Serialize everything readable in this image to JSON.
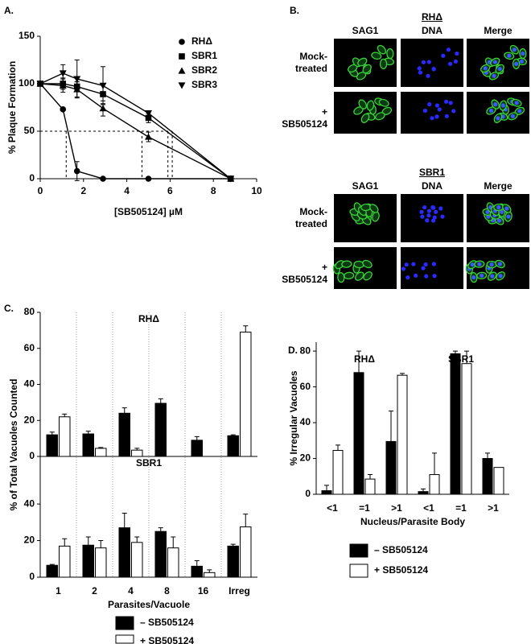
{
  "panel_labels": [
    "A.",
    "B.",
    "C.",
    "D."
  ],
  "chart_data": [
    {
      "type": "line",
      "xlabel": "[SB505124] µM",
      "ylabel": "% Plaque Formation",
      "x": [
        0,
        1.05,
        1.7,
        2.9,
        5.0,
        8.8
      ],
      "xlim": [
        0,
        10
      ],
      "xticks": [
        0,
        2,
        4,
        6,
        8,
        10
      ],
      "ylim": [
        0,
        150
      ],
      "yticks": [
        0,
        50,
        100,
        150
      ],
      "reference_lines": {
        "y": 50,
        "x": [
          1.2,
          4.7,
          5.9,
          6.1
        ]
      },
      "legend": "upper right",
      "series": [
        {
          "name": "RHΔ",
          "marker": "circle",
          "color": "#000000",
          "values": [
            100,
            73,
            8,
            0,
            0,
            0
          ],
          "errors": [
            0,
            0,
            10,
            0,
            0,
            0
          ]
        },
        {
          "name": "SBR1",
          "marker": "square",
          "color": "#000000",
          "values": [
            100,
            100,
            97,
            89,
            64,
            0
          ],
          "errors": [
            0,
            6,
            5,
            10,
            5,
            0
          ]
        },
        {
          "name": "SBR2",
          "marker": "triangle-up",
          "color": "#000000",
          "values": [
            100,
            98,
            94,
            74,
            44,
            0
          ],
          "errors": [
            0,
            7,
            8,
            8,
            5,
            0
          ]
        },
        {
          "name": "SBR3",
          "marker": "triangle-down",
          "color": "#000000",
          "values": [
            100,
            111,
            105,
            98,
            69,
            0
          ],
          "errors": [
            0,
            9,
            20,
            20,
            0,
            0
          ]
        }
      ]
    },
    {
      "type": "bar",
      "xlabel": "Parasites/Vacuole",
      "ylabel": "% of Total Vacuoles Counted",
      "categories": [
        "1",
        "2",
        "4",
        "8",
        "16",
        "Irreg"
      ],
      "separators": true,
      "series": [
        {
          "name": "– SB505124",
          "color": "#000000"
        },
        {
          "name": "+ SB505124",
          "color": "#ffffff"
        }
      ],
      "subplots": [
        {
          "title": "RHΔ",
          "ylim": [
            0,
            80
          ],
          "yticks": [
            0,
            20,
            40,
            60,
            80
          ],
          "series": [
            {
              "values": [
                12,
                12.5,
                24,
                29.5,
                9,
                11.5
              ],
              "errors": [
                1.5,
                1.5,
                3,
                2.5,
                2,
                0.5
              ]
            },
            {
              "values": [
                22,
                4.5,
                3.5,
                0,
                0,
                69
              ],
              "errors": [
                1.5,
                0.5,
                1,
                0,
                0,
                3.5
              ]
            }
          ]
        },
        {
          "title": "SBR1",
          "ylim": [
            0,
            66
          ],
          "yticks": [
            0,
            20,
            40
          ],
          "series": [
            {
              "values": [
                6.5,
                17.5,
                27,
                25,
                6,
                17
              ],
              "errors": [
                0.5,
                4.5,
                8,
                2,
                3,
                1
              ]
            },
            {
              "values": [
                17,
                16,
                19,
                16,
                2.5,
                27.5
              ],
              "errors": [
                4,
                4,
                3,
                6,
                1.5,
                7
              ]
            }
          ]
        }
      ]
    },
    {
      "type": "bar",
      "xlabel": "Nucleus/Parasite Body",
      "ylabel": "% Irregular Vacuoles",
      "categories": [
        "<1",
        "=1",
        ">1",
        "<1",
        "=1",
        ">1"
      ],
      "group_labels": [
        "RHΔ",
        "SBR1"
      ],
      "ylim": [
        0,
        85
      ],
      "yticks": [
        0,
        20,
        40,
        60,
        80
      ],
      "series": [
        {
          "name": "– SB505124",
          "color": "#000000",
          "values": [
            2,
            68,
            29.5,
            1.5,
            78.5,
            20
          ],
          "errors": [
            3,
            12,
            17,
            1.5,
            1.5,
            3
          ]
        },
        {
          "name": "+ SB505124",
          "color": "#ffffff",
          "values": [
            24.5,
            8.5,
            66.5,
            11,
            73,
            15
          ],
          "errors": [
            3,
            2.5,
            1,
            12,
            7,
            0
          ]
        }
      ]
    }
  ],
  "image_panel": {
    "groups": [
      {
        "title": "RHΔ",
        "columns": [
          "SAG1",
          "DNA",
          "Merge"
        ],
        "rows": [
          "Mock-treated",
          "+ SB505124"
        ]
      },
      {
        "title": "SBR1",
        "columns": [
          "SAG1",
          "DNA",
          "Merge"
        ],
        "rows": [
          "Mock-treated",
          "+ SB505124"
        ]
      }
    ]
  }
}
